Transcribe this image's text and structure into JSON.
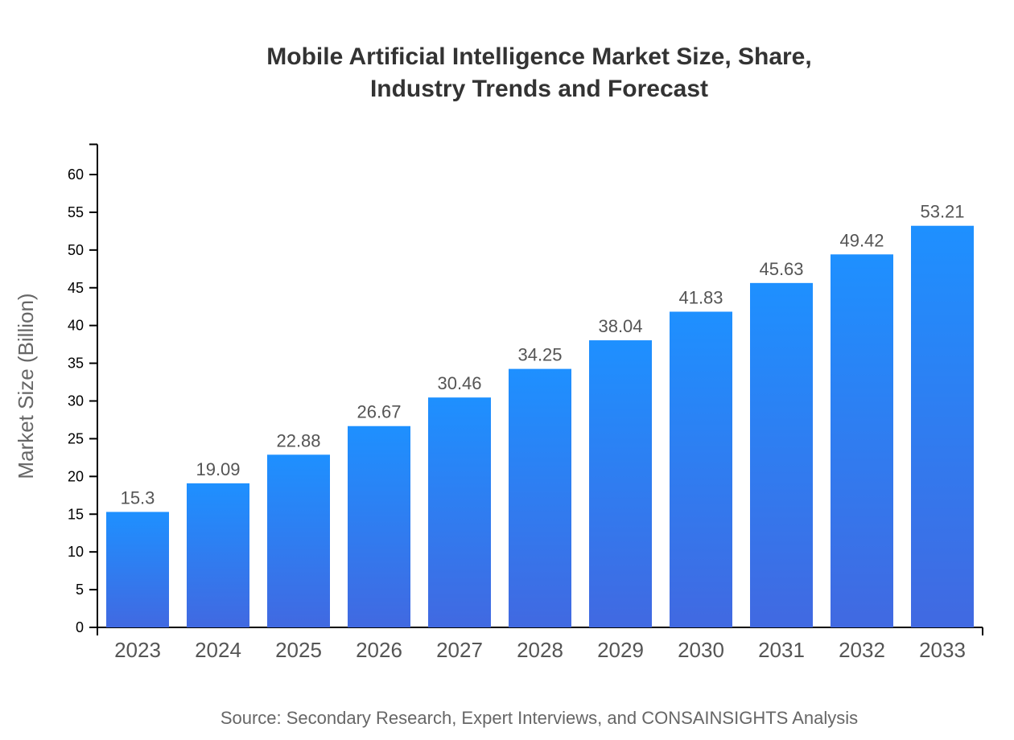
{
  "chart_data": {
    "type": "bar",
    "title_lines": [
      "Mobile Artificial Intelligence Market Size, Share,",
      "Industry Trends and Forecast"
    ],
    "categories": [
      "2023",
      "2024",
      "2025",
      "2026",
      "2027",
      "2028",
      "2029",
      "2030",
      "2031",
      "2032",
      "2033"
    ],
    "values": [
      15.3,
      19.09,
      22.88,
      26.67,
      30.46,
      34.25,
      38.04,
      41.83,
      45.63,
      49.42,
      53.21
    ],
    "data_labels": [
      "15.3",
      "19.09",
      "22.88",
      "26.67",
      "30.46",
      "34.25",
      "38.04",
      "41.83",
      "45.63",
      "49.42",
      "53.21"
    ],
    "xlabel": "",
    "ylabel": "Market Size (Billion)",
    "ylim": [
      0,
      64
    ],
    "yticks": [
      0,
      5,
      10,
      15,
      20,
      25,
      30,
      35,
      40,
      45,
      50,
      55,
      60
    ],
    "grid": false,
    "colors": {
      "bar_top": "#1e90ff",
      "bar_bottom": "#4169e1"
    },
    "source": "Source: Secondary Research, Expert Interviews, and CONSAINSIGHTS Analysis"
  }
}
